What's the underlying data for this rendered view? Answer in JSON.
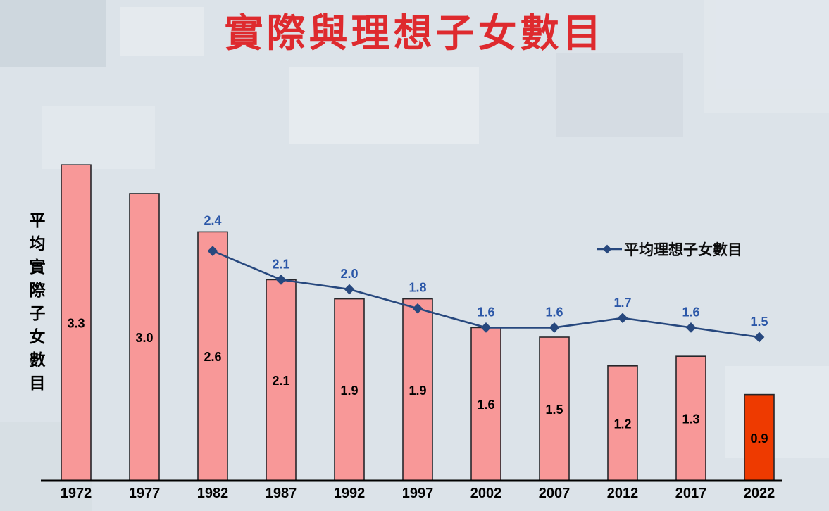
{
  "title": "實際與理想子女數目",
  "y_axis": {
    "label": "平均實際子女數目"
  },
  "legend": {
    "ideal_label": "平均理想子女數目"
  },
  "chart_data": {
    "type": "bar",
    "title": "實際與理想子女數目",
    "categories": [
      "1972",
      "1977",
      "1982",
      "1987",
      "1992",
      "1997",
      "2002",
      "2007",
      "2012",
      "2017",
      "2022"
    ],
    "series": [
      {
        "name": "平均實際子女數目",
        "type": "bar",
        "values": [
          3.3,
          3.0,
          2.6,
          2.1,
          1.9,
          1.9,
          1.6,
          1.5,
          1.2,
          1.3,
          0.9
        ]
      },
      {
        "name": "平均理想子女數目",
        "type": "line",
        "values": [
          null,
          null,
          2.4,
          2.1,
          2.0,
          1.8,
          1.6,
          1.6,
          1.7,
          1.6,
          1.5
        ]
      }
    ],
    "ylabel": "平均實際子女數目",
    "xlabel": "",
    "ylim": [
      0,
      3.5
    ],
    "grid": false,
    "legend_position": "middle-right",
    "colors": {
      "bar": "#F89898",
      "bar_last": "#EE3A00",
      "bar_border": "#26262a",
      "line": "#27487E",
      "line_label": "#2B57A8",
      "bar_label": "#000000",
      "title": "#DE2A2E",
      "background": "#DCE3E9"
    }
  }
}
